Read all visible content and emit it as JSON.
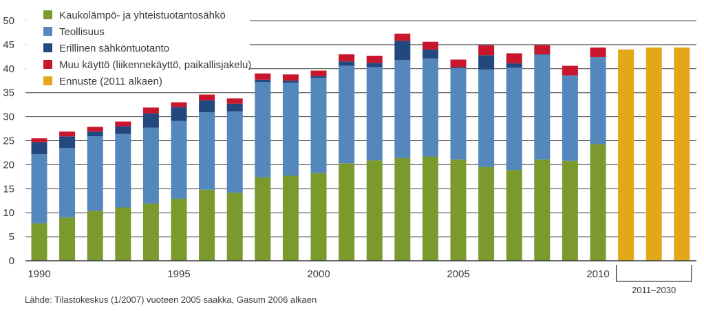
{
  "chart_data": {
    "type": "bar",
    "stacked": true,
    "ylim": [
      0,
      50
    ],
    "yticks": [
      0,
      5,
      10,
      15,
      20,
      25,
      30,
      35,
      40,
      45,
      50
    ],
    "x_tick_labels": [
      "1990",
      "1995",
      "2000",
      "2005",
      "2010"
    ],
    "forecast_label": "2011–2030",
    "grid": true,
    "legend_position": "top-left",
    "years": [
      1990,
      1991,
      1992,
      1993,
      1994,
      1995,
      1996,
      1997,
      1998,
      1999,
      2000,
      2001,
      2002,
      2003,
      2004,
      2005,
      2006,
      2007,
      2008,
      2009,
      2010
    ],
    "series": [
      {
        "name": "Kaukolämpö- ja yhteistuotantosähkö",
        "color": "#7a9a2e",
        "values": [
          7.8,
          9.0,
          10.4,
          11.1,
          11.9,
          12.9,
          14.8,
          14.2,
          17.4,
          17.7,
          18.3,
          20.3,
          20.9,
          21.4,
          21.7,
          21.1,
          19.5,
          18.9,
          21.1,
          20.8,
          24.3
        ]
      },
      {
        "name": "Teollisuus",
        "color": "#5487bb",
        "values": [
          14.4,
          14.5,
          15.5,
          15.3,
          15.8,
          16.2,
          16.1,
          16.9,
          19.8,
          19.4,
          19.8,
          20.3,
          19.4,
          20.4,
          20.4,
          19.0,
          20.3,
          21.3,
          21.8,
          17.8,
          18.1
        ]
      },
      {
        "name": "Erillinen sähköntuotanto",
        "color": "#23487e",
        "values": [
          2.5,
          2.4,
          1.0,
          1.6,
          3.0,
          2.9,
          2.5,
          1.6,
          0.5,
          0.4,
          0.4,
          0.9,
          0.9,
          4.0,
          1.9,
          0.2,
          3.0,
          0.9,
          0.1,
          0.0,
          0.0
        ]
      },
      {
        "name": "Muu käyttö (liikennekäyttö, paikallisjakelu)",
        "color": "#c8172c",
        "values": [
          0.8,
          1.0,
          1.0,
          1.0,
          1.2,
          1.0,
          1.2,
          1.1,
          1.3,
          1.3,
          1.1,
          1.5,
          1.5,
          1.5,
          1.6,
          1.6,
          2.1,
          2.1,
          1.9,
          2.0,
          2.0
        ]
      },
      {
        "name": "Ennuste (2011 alkaen)",
        "color": "#e3a718",
        "forecast_values": [
          44.0,
          44.4,
          44.4
        ]
      }
    ]
  },
  "source_text": "Lähde: Tilastokeskus (1/2007) vuoteen 2005 saakka, Gasum 2006 alkaen"
}
